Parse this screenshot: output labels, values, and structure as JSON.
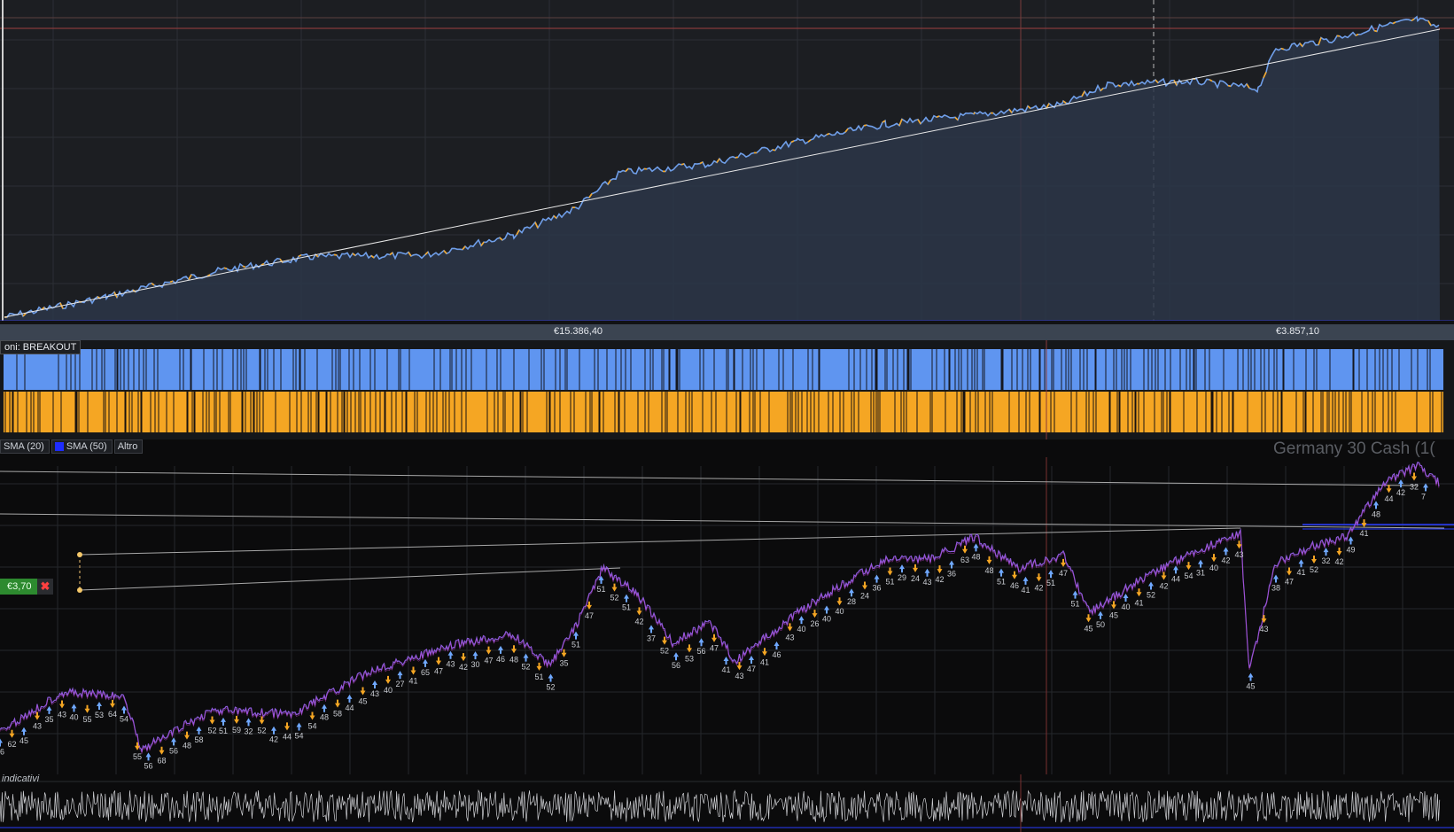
{
  "equity": {
    "left_label": "€15.386,40",
    "right_label": "€3.857,10"
  },
  "orders": {
    "label": "oni: BREAKOUT"
  },
  "price": {
    "legend": [
      {
        "label": "SMA (20)",
        "color": "#7a7a7a"
      },
      {
        "label": "SMA (50)",
        "color": "#1e2cff"
      },
      {
        "label": "Altro",
        "color": ""
      }
    ],
    "title": "Germany 30 Cash (1(",
    "position_value": "€3,70",
    "close_symbol": "✖"
  },
  "volume": {
    "label": "indicativi"
  },
  "colors": {
    "equity_line": "#6f9ee8",
    "equity_line_alt": "#f3a72b",
    "long_bar": "#5f95f0",
    "short_bar": "#f5a623",
    "price_line": "#8e5bdc"
  },
  "trade_labels": [
    "36",
    "62",
    "45",
    "43",
    "35",
    "43",
    "40",
    "55",
    "53",
    "64",
    "54",
    "55",
    "56",
    "68",
    "56",
    "48",
    "58",
    "52",
    "51",
    "59",
    "32",
    "52",
    "42",
    "44",
    "54",
    "54",
    "48",
    "58",
    "44",
    "45",
    "43",
    "40",
    "27",
    "41",
    "65",
    "47",
    "43",
    "42",
    "30",
    "47",
    "46",
    "48",
    "52",
    "51",
    "52",
    "35",
    "51",
    "47",
    "51",
    "52",
    "51",
    "42",
    "37",
    "52",
    "56",
    "53",
    "56",
    "47",
    "41",
    "43",
    "47",
    "41",
    "46",
    "43",
    "40",
    "26",
    "40",
    "40",
    "28",
    "24",
    "36",
    "51",
    "29",
    "24",
    "43",
    "42",
    "36",
    "63",
    "48",
    "48",
    "51",
    "46",
    "41",
    "42",
    "51",
    "47",
    "51",
    "45",
    "50",
    "45",
    "40",
    "41",
    "52",
    "42",
    "44",
    "54",
    "31",
    "40",
    "42",
    "43",
    "45",
    "43",
    "38",
    "47",
    "41",
    "52",
    "32",
    "42",
    "49",
    "41",
    "48",
    "44",
    "42",
    "32",
    "7"
  ]
}
